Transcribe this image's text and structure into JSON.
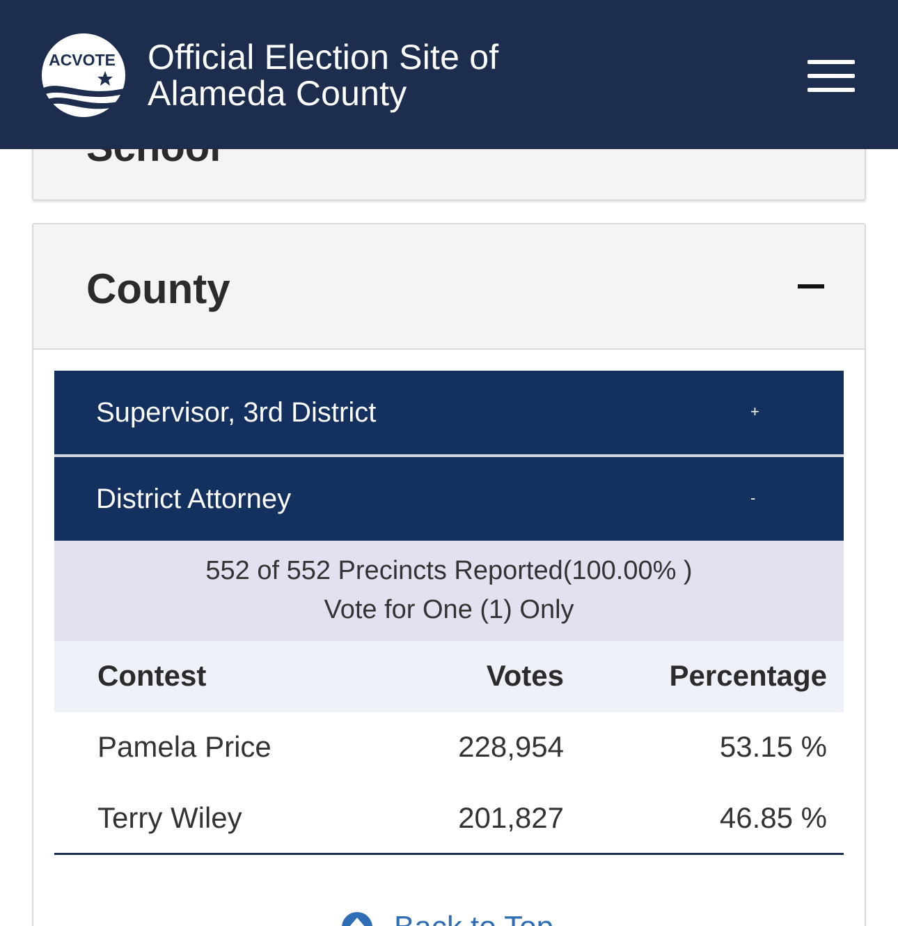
{
  "header": {
    "logo_text": "ACVOTE",
    "title_line1": "Official Election Site of",
    "title_line2": "Alameda County"
  },
  "colors": {
    "header_bg": "#1c2d4e",
    "contest_bar_bg": "#14305f",
    "reported_bg": "#e2e1ef",
    "table_head_bg": "#eef1f8",
    "link": "#2f6eb5"
  },
  "sections": {
    "school": {
      "heading": "School",
      "toggle": "-"
    },
    "county": {
      "heading": "County",
      "toggle_icon": "minus-icon"
    }
  },
  "contests": [
    {
      "label": "Supervisor, 3rd District",
      "sign": "+"
    },
    {
      "label": "District Attorney",
      "sign": "-"
    }
  ],
  "district_attorney": {
    "reported": "552 of 552 Precincts Reported(100.00% )",
    "vote_for": "Vote for One (1) Only",
    "columns": {
      "contest": "Contest",
      "votes": "Votes",
      "percentage": "Percentage"
    },
    "rows": [
      {
        "name": "Pamela Price",
        "votes": "228,954",
        "percentage": "53.15 %"
      },
      {
        "name": "Terry Wiley",
        "votes": "201,827",
        "percentage": "46.85 %"
      }
    ]
  },
  "footer": {
    "back_to_top": "Back to Top",
    "back_icon": "arrow-up-circle-icon"
  }
}
